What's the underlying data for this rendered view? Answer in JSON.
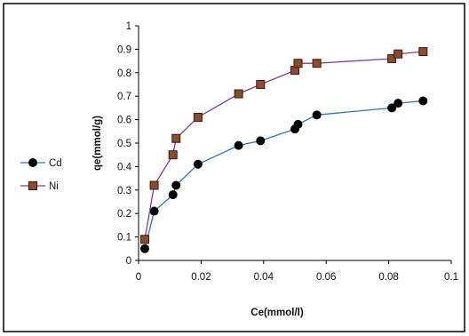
{
  "chart_data": {
    "type": "scatter",
    "xlabel": "Ce(mmol/l)",
    "ylabel": "qe(mmol/g)",
    "xlim": [
      0,
      0.1
    ],
    "ylim": [
      0,
      1
    ],
    "x_ticks": [
      "0",
      "0.02",
      "0.04",
      "0.06",
      "0.08",
      "0.1"
    ],
    "y_ticks": [
      "0",
      "0.1",
      "0.2",
      "0.3",
      "0.4",
      "0.5",
      "0.6",
      "0.7",
      "0.8",
      "0.9",
      "1"
    ],
    "grid": false,
    "legend_position": "left",
    "series": [
      {
        "name": "Cd",
        "color": "#2e75b6",
        "marker": "circle",
        "x": [
          0.002,
          0.005,
          0.011,
          0.012,
          0.019,
          0.032,
          0.039,
          0.05,
          0.051,
          0.057,
          0.081,
          0.083,
          0.091
        ],
        "y": [
          0.05,
          0.21,
          0.28,
          0.32,
          0.41,
          0.49,
          0.51,
          0.56,
          0.58,
          0.62,
          0.65,
          0.67,
          0.68
        ]
      },
      {
        "name": "Ni",
        "color": "#7f3f98",
        "marker": "square",
        "x": [
          0.002,
          0.005,
          0.011,
          0.012,
          0.019,
          0.032,
          0.039,
          0.05,
          0.051,
          0.057,
          0.081,
          0.083,
          0.091
        ],
        "y": [
          0.09,
          0.32,
          0.45,
          0.52,
          0.61,
          0.71,
          0.75,
          0.81,
          0.84,
          0.84,
          0.86,
          0.88,
          0.89
        ]
      }
    ]
  }
}
